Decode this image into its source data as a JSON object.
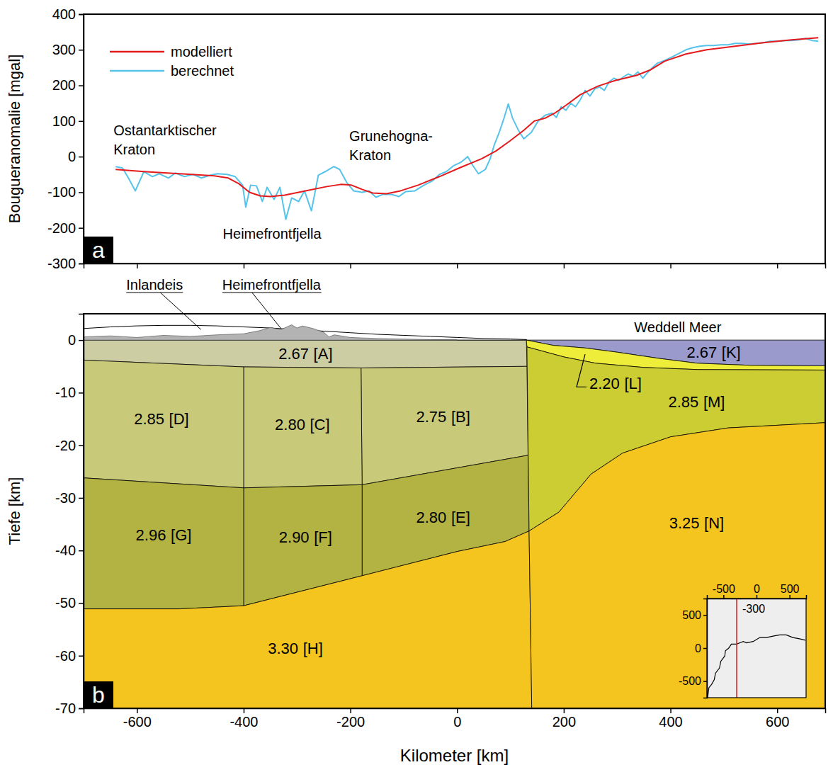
{
  "chart_data": [
    {
      "type": "line",
      "panel": "a",
      "xlim": [
        -700,
        690
      ],
      "xticks": [
        -600,
        -400,
        -200,
        0,
        200,
        400,
        600
      ],
      "ylim": [
        -300,
        400
      ],
      "yticks": [
        -300,
        -200,
        -100,
        0,
        100,
        200,
        300,
        400
      ],
      "y_label": "Bougueranomalie [mgal]",
      "tick_labels": "y",
      "legend": "top-left",
      "series": [
        {
          "name": "modelliert",
          "color": "#e41a1c",
          "x": [
            -640,
            -587,
            -521,
            -455,
            -429,
            -409,
            -389,
            -369,
            -350,
            -323,
            -284,
            -244,
            -218,
            -198,
            -178,
            -158,
            -132,
            -106,
            -73,
            -33,
            7,
            46,
            73,
            99,
            125,
            145,
            165,
            185,
            204,
            231,
            264,
            297,
            336,
            363,
            389,
            429,
            468,
            521,
            574,
            627,
            677
          ],
          "values": [
            -36,
            -42,
            -48,
            -54,
            -60,
            -76,
            -100,
            -110,
            -112,
            -108,
            -96,
            -84,
            -78,
            -80,
            -92,
            -102,
            -104,
            -96,
            -80,
            -56,
            -30,
            -6,
            16,
            44,
            74,
            100,
            108,
            124,
            144,
            174,
            198,
            214,
            228,
            244,
            268,
            288,
            300,
            310,
            320,
            328,
            334
          ]
        },
        {
          "name": "berechnet",
          "color": "#55c3ea",
          "x": [
            -640,
            -627,
            -616,
            -603,
            -587,
            -571,
            -558,
            -541,
            -528,
            -511,
            -495,
            -479,
            -462,
            -449,
            -431,
            -416,
            -402,
            -396,
            -387,
            -376,
            -365,
            -356,
            -343,
            -332,
            -321,
            -310,
            -297,
            -286,
            -273,
            -260,
            -247,
            -231,
            -220,
            -207,
            -194,
            -178,
            -165,
            -152,
            -139,
            -123,
            -109,
            -96,
            -79,
            -62,
            -46,
            -33,
            -20,
            -7,
            7,
            20,
            30,
            40,
            53,
            62,
            70,
            79,
            88,
            96,
            104,
            115,
            125,
            139,
            152,
            165,
            178,
            186,
            195,
            204,
            213,
            222,
            231,
            240,
            249,
            258,
            267,
            276,
            285,
            294,
            303,
            312,
            321,
            330,
            339,
            348,
            357,
            366,
            375,
            389,
            403,
            416,
            429,
            442,
            455,
            468,
            481,
            495,
            508,
            521,
            534,
            548,
            561,
            574,
            587,
            600,
            614,
            627,
            640,
            653,
            666,
            677
          ],
          "values": [
            -28,
            -32,
            -60,
            -96,
            -42,
            -56,
            -48,
            -60,
            -46,
            -56,
            -50,
            -60,
            -52,
            -48,
            -50,
            -56,
            -80,
            -142,
            -80,
            -82,
            -126,
            -86,
            -120,
            -86,
            -176,
            -116,
            -126,
            -96,
            -152,
            -52,
            -42,
            -28,
            -36,
            -72,
            -96,
            -100,
            -96,
            -114,
            -106,
            -106,
            -112,
            -98,
            -96,
            -80,
            -68,
            -50,
            -42,
            -26,
            -16,
            0,
            -26,
            -48,
            -36,
            -6,
            34,
            68,
            108,
            148,
            108,
            74,
            50,
            68,
            100,
            116,
            122,
            110,
            140,
            130,
            150,
            140,
            160,
            186,
            170,
            190,
            196,
            186,
            210,
            220,
            214,
            224,
            232,
            226,
            238,
            220,
            236,
            250,
            262,
            270,
            280,
            290,
            300,
            306,
            310,
            312,
            312,
            314,
            314,
            318,
            318,
            316,
            318,
            320,
            324,
            324,
            326,
            326,
            328,
            332,
            326,
            324
          ]
        }
      ],
      "annotations": [
        {
          "text": [
            "Ostantarktischer",
            "Kraton"
          ]
        },
        {
          "text": [
            "Heimefrontfjella"
          ]
        },
        {
          "text": [
            "Grunehogna-",
            "Kraton"
          ]
        }
      ]
    },
    {
      "type": "cross-section",
      "panel": "b",
      "xlim": [
        -700,
        690
      ],
      "xticks": [
        -600,
        -400,
        -200,
        0,
        200,
        400,
        600
      ],
      "ylim": [
        -70,
        5
      ],
      "yticks": [
        -70,
        -60,
        -50,
        -40,
        -30,
        -20,
        -10,
        0
      ],
      "x_label": "Kilometer [km]",
      "y_label": "Tiefe [km]",
      "bodies": [
        {
          "id": "[A]",
          "density": {
            "value": 2.67,
            "label": "2.67"
          },
          "color": "#cdcda3",
          "x": [
            -700,
            130,
            131,
            -180,
            -400,
            -700
          ],
          "y": [
            0,
            0,
            -5.0,
            -5.3,
            -5.1,
            -3.8
          ]
        },
        {
          "id": "[B]",
          "density": {
            "value": 2.75,
            "label": "2.75"
          },
          "color": "#c9c97a",
          "x": [
            -180,
            131,
            133,
            -178
          ],
          "y": [
            -5.3,
            -5.0,
            -21.9,
            -27.5
          ]
        },
        {
          "id": "[C]",
          "density": {
            "value": 2.8,
            "label": "2.80"
          },
          "color": "#c9c97a",
          "x": [
            -400,
            -180,
            -178,
            -400
          ],
          "y": [
            -5.1,
            -5.3,
            -27.5,
            -28.1
          ]
        },
        {
          "id": "[D]",
          "density": {
            "value": 2.85,
            "label": "2.85"
          },
          "color": "#c9c97a",
          "x": [
            -700,
            -400,
            -400,
            -700
          ],
          "y": [
            -3.8,
            -5.1,
            -28.1,
            -26.2
          ]
        },
        {
          "id": "[E]",
          "density": {
            "value": 2.8,
            "label": "2.80"
          },
          "color": "#b3b343",
          "x": [
            -178,
            133,
            135,
            90,
            0,
            -178
          ],
          "y": [
            -27.5,
            -21.9,
            -36.3,
            -38.3,
            -40.2,
            -44.8
          ]
        },
        {
          "id": "[F]",
          "density": {
            "value": 2.9,
            "label": "2.90"
          },
          "color": "#b3b343",
          "x": [
            -400,
            -178,
            -178,
            -400
          ],
          "y": [
            -28.1,
            -27.5,
            -44.8,
            -50.5
          ]
        },
        {
          "id": "[G]",
          "density": {
            "value": 2.96,
            "label": "2.96"
          },
          "color": "#b3b343",
          "x": [
            -700,
            -400,
            -400,
            -520,
            -700
          ],
          "y": [
            -26.2,
            -28.1,
            -50.5,
            -51.1,
            -51.1
          ]
        },
        {
          "id": "[H]",
          "density": {
            "value": 3.3,
            "label": "3.30"
          },
          "color": "#f5c51f",
          "x": [
            -700,
            -520,
            -400,
            -178,
            0,
            90,
            135,
            140,
            -700
          ],
          "y": [
            -51.1,
            -51.1,
            -50.5,
            -44.8,
            -40.2,
            -38.3,
            -36.3,
            -70,
            -70
          ]
        },
        {
          "id": "[K]",
          "density": {
            "value": 2.67,
            "label": "2.67"
          },
          "color": "#9a9acd",
          "x": [
            130,
            690,
            690,
            550,
            450,
            380,
            300,
            240,
            180
          ],
          "y": [
            0,
            0,
            -4.9,
            -4.8,
            -4.4,
            -3.5,
            -2.3,
            -1.5,
            -1.0
          ]
        },
        {
          "id": "[L]",
          "density": {
            "value": 2.2,
            "label": "2.20"
          },
          "color": "#eeee3a",
          "x": [
            130,
            180,
            240,
            300,
            380,
            450,
            550,
            690,
            690,
            450,
            350,
            260,
            200,
            131
          ],
          "y": [
            0,
            -1.0,
            -1.5,
            -2.3,
            -3.5,
            -4.4,
            -4.8,
            -4.9,
            -5.7,
            -5.6,
            -5.2,
            -4.4,
            -3.2,
            -1.3
          ]
        },
        {
          "id": "[M]",
          "density": {
            "value": 2.85,
            "label": "2.85"
          },
          "color": "#cccc33",
          "x": [
            131,
            200,
            260,
            350,
            450,
            690,
            690,
            508,
            400,
            310,
            251,
            191,
            135
          ],
          "y": [
            -1.3,
            -3.2,
            -4.4,
            -5.2,
            -5.6,
            -5.7,
            -15.7,
            -16.7,
            -18.4,
            -21.5,
            -25.5,
            -32.7,
            -36.3
          ]
        },
        {
          "id": "[N]",
          "density": {
            "value": 3.25,
            "label": "3.25"
          },
          "color": "#f5c51f",
          "x": [
            135,
            191,
            251,
            310,
            400,
            508,
            690,
            690,
            140
          ],
          "y": [
            -36.3,
            -32.7,
            -25.5,
            -21.5,
            -18.4,
            -16.7,
            -15.7,
            -70,
            -70
          ]
        }
      ],
      "surfaces": [
        {
          "label": "Inlandeis",
          "color": "#ffffff",
          "x": [
            -700,
            -650,
            -600,
            -550,
            -500,
            -450,
            -400,
            -350,
            -300,
            -250,
            -200,
            -150,
            -100,
            -50,
            0,
            50,
            100,
            130,
            130,
            -700
          ],
          "y": [
            2.2,
            2.5,
            2.7,
            2.8,
            2.8,
            2.7,
            2.5,
            2.3,
            2.0,
            1.7,
            1.4,
            1.1,
            0.9,
            0.7,
            0.5,
            0.3,
            0.2,
            0.1,
            0,
            0
          ]
        },
        {
          "label": "Heimefrontfjella",
          "color": "#b3b3b3",
          "x": [
            -700,
            -650,
            -600,
            -550,
            -500,
            -450,
            -400,
            -370,
            -350,
            -330,
            -310,
            -300,
            -290,
            -270,
            -250,
            -240,
            -230,
            -200,
            -150,
            -100,
            -50,
            0,
            0,
            -700
          ],
          "y": [
            0.6,
            0.8,
            0.5,
            0.9,
            0.7,
            1.0,
            1.2,
            1.8,
            2.4,
            2.0,
            2.9,
            2.3,
            2.7,
            2.2,
            1.5,
            0.6,
            1.0,
            0.5,
            0.3,
            0.2,
            0.1,
            0.05,
            0,
            0
          ]
        }
      ],
      "annotations": [
        {
          "text": [
            "Weddell Meer"
          ]
        }
      ],
      "inset": {
        "xlim": [
          -750,
          750
        ],
        "xticks": [
          -500,
          0,
          500
        ],
        "ylim": [
          -750,
          750
        ],
        "yticks": [
          -500,
          0,
          500
        ],
        "coast": {
          "x": [
            -740,
            -720,
            -680,
            -640,
            -620,
            -560,
            -540,
            -480,
            -470,
            -420,
            -380,
            -300,
            -250,
            -200,
            -150,
            -50,
            50,
            150,
            250,
            350,
            450,
            550,
            650,
            740
          ],
          "y": [
            -750,
            -600,
            -550,
            -480,
            -380,
            -300,
            -200,
            -120,
            -40,
            0,
            60,
            60,
            80,
            100,
            80,
            100,
            160,
            160,
            180,
            200,
            200,
            160,
            140,
            120
          ]
        },
        "profile_x": -300
      }
    }
  ]
}
